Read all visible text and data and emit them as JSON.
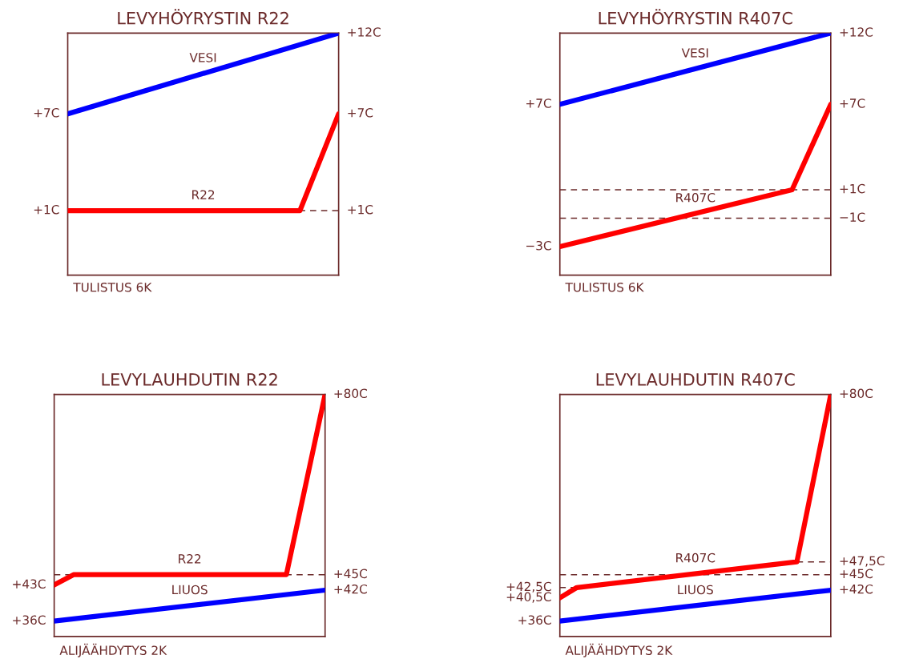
{
  "chart_data": [
    {
      "type": "line",
      "title": "LEVYHÖYRYSTIN R22",
      "categories": [
        null,
        null,
        null,
        null,
        null,
        null,
        null,
        null
      ],
      "ylim": [
        -3,
        12
      ],
      "series": [
        {
          "name": "VESI",
          "color": "#0000ff",
          "values": [
            7,
            null,
            null,
            null,
            null,
            null,
            null,
            12
          ],
          "value_labels": [
            "+7C",
            null,
            null,
            null,
            null,
            null,
            null,
            "+12C"
          ]
        },
        {
          "name": "R22",
          "color": "#ff0000",
          "values": [
            1,
            null,
            null,
            null,
            null,
            null,
            1,
            7
          ],
          "value_labels": [
            "+1C",
            null,
            null,
            null,
            null,
            null,
            null,
            "+7C"
          ]
        }
      ],
      "ref_lines": [
        {
          "axis": "y",
          "value": 1,
          "label": "+1C",
          "color": "#6b2a2a",
          "line_style": "dashed"
        }
      ],
      "annotations": [
        "TULISTUS 6K"
      ]
    },
    {
      "type": "line",
      "title": "LEVYHÖYRYSTIN R407C",
      "categories": [
        null,
        null,
        null,
        null,
        null,
        null,
        null,
        null
      ],
      "ylim": [
        -5,
        12
      ],
      "series": [
        {
          "name": "VESI",
          "color": "#0000ff",
          "values": [
            7,
            null,
            null,
            null,
            null,
            null,
            null,
            12
          ],
          "value_labels": [
            "+7C",
            null,
            null,
            null,
            null,
            null,
            null,
            "+12C"
          ]
        },
        {
          "name": "R407C",
          "color": "#ff0000",
          "values": [
            -3,
            null,
            null,
            null,
            null,
            null,
            1,
            7
          ],
          "value_labels": [
            "−3C",
            null,
            null,
            null,
            null,
            null,
            null,
            "+7C"
          ]
        }
      ],
      "ref_lines": [
        {
          "axis": "y",
          "value": 1,
          "label": "+1C",
          "color": "#6b2a2a",
          "line_style": "dashed"
        },
        {
          "axis": "y",
          "value": -1,
          "label": "−1C",
          "color": "#6b2a2a",
          "line_style": "dashed"
        }
      ],
      "annotations": [
        "TULISTUS 6K"
      ]
    },
    {
      "type": "line",
      "title": "LEVYLAUHDUTIN R22",
      "categories": [
        null,
        null,
        null,
        null,
        null,
        null,
        null,
        null,
        null,
        null,
        null,
        null,
        null,
        null,
        null
      ],
      "ylim": [
        33,
        80
      ],
      "series": [
        {
          "name": "R22",
          "color": "#ff0000",
          "values": [
            43,
            45,
            null,
            null,
            null,
            null,
            null,
            null,
            null,
            null,
            null,
            null,
            45,
            null,
            80
          ],
          "value_labels": [
            "+43C",
            null,
            null,
            null,
            null,
            null,
            null,
            null,
            null,
            null,
            null,
            null,
            null,
            null,
            "+80C"
          ]
        },
        {
          "name": "LIUOS",
          "color": "#0000ff",
          "values": [
            36,
            null,
            null,
            null,
            null,
            null,
            null,
            null,
            null,
            null,
            null,
            null,
            null,
            null,
            42
          ],
          "value_labels": [
            "+36C",
            null,
            null,
            null,
            null,
            null,
            null,
            null,
            null,
            null,
            null,
            null,
            null,
            null,
            "+42C"
          ]
        }
      ],
      "ref_lines": [
        {
          "axis": "y",
          "value": 45,
          "label": "+45C",
          "color": "#6b2a2a",
          "line_style": "dashed"
        }
      ],
      "annotations": [
        "ALIJÄÄHDYTYS 2K"
      ]
    },
    {
      "type": "line",
      "title": "LEVYLAUHDUTIN R407C",
      "categories": [
        null,
        null,
        null,
        null,
        null,
        null,
        null,
        null,
        null,
        null,
        null,
        null,
        null,
        null,
        null,
        null,
        null
      ],
      "ylim": [
        33,
        80
      ],
      "series": [
        {
          "name": "R407C",
          "color": "#ff0000",
          "values": [
            40.5,
            42.5,
            null,
            null,
            null,
            null,
            null,
            null,
            null,
            null,
            null,
            null,
            null,
            null,
            47.5,
            null,
            80
          ],
          "value_labels": [
            "+40,5C",
            "+42,5C",
            null,
            null,
            null,
            null,
            null,
            null,
            null,
            null,
            null,
            null,
            null,
            null,
            "+47,5C",
            null,
            "+80C"
          ]
        },
        {
          "name": "LIUOS",
          "color": "#0000ff",
          "values": [
            36,
            null,
            null,
            null,
            null,
            null,
            null,
            null,
            null,
            null,
            null,
            null,
            null,
            null,
            null,
            null,
            42
          ],
          "value_labels": [
            "+36C",
            null,
            null,
            null,
            null,
            null,
            null,
            null,
            null,
            null,
            null,
            null,
            null,
            null,
            null,
            null,
            "+42C"
          ]
        }
      ],
      "ref_lines": [
        {
          "axis": "y",
          "value": 45,
          "label": "+45C",
          "color": "#6b2a2a",
          "line_style": "dashed"
        }
      ],
      "annotations": [
        "ALIJÄÄHDYTYS 2K"
      ]
    }
  ]
}
